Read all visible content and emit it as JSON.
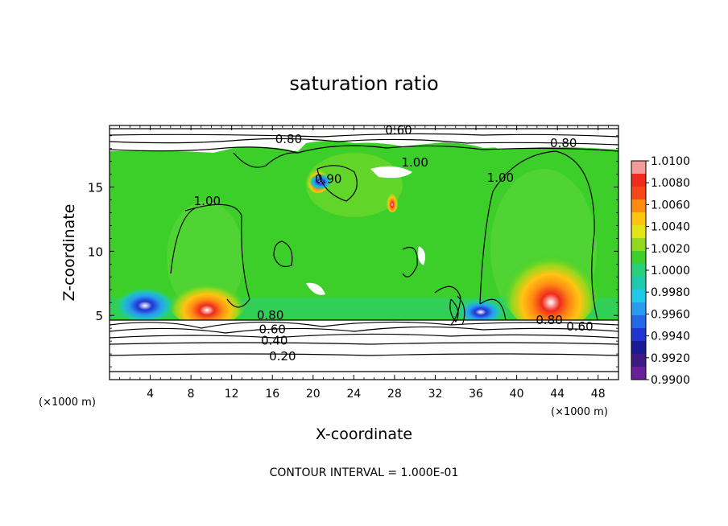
{
  "chart_data": {
    "type": "heatmap",
    "title": "saturation ratio",
    "xlabel": "X-coordinate",
    "ylabel": "Z-coordinate",
    "x_unit_left": "(×1000 m)",
    "x_unit_right": "(×1000 m)",
    "footer": "CONTOUR INTERVAL = 1.000E-01",
    "xlim": [
      0,
      50
    ],
    "ylim": [
      0,
      19.8
    ],
    "x_ticks": [
      4,
      8,
      12,
      16,
      20,
      24,
      28,
      32,
      36,
      40,
      44,
      48
    ],
    "y_ticks": [
      5,
      10,
      15
    ],
    "colorbar": {
      "levels": [
        "1.0100",
        "1.0080",
        "1.0060",
        "1.0040",
        "1.0020",
        "1.0000",
        "0.9980",
        "0.9960",
        "0.9940",
        "0.9920",
        "0.9900"
      ],
      "colors": [
        "#f49a9a",
        "#ee2a1c",
        "#f5481a",
        "#ff8a14",
        "#ffc412",
        "#e2e416",
        "#92d81e",
        "#3ccf2a",
        "#28d07c",
        "#1ec9ae",
        "#22c8e8",
        "#2a9cf0",
        "#2468e6",
        "#2034d2",
        "#1a1a96",
        "#3e1a84",
        "#68209a"
      ]
    },
    "contour_labels": [
      {
        "text": "0.60",
        "x": 28.4,
        "z": 19.3
      },
      {
        "text": "0.80",
        "x": 17.6,
        "z": 18.6
      },
      {
        "text": "0.80",
        "x": 44.6,
        "z": 18.3
      },
      {
        "text": "1.00",
        "x": 30.0,
        "z": 16.8
      },
      {
        "text": "0.90",
        "x": 21.5,
        "z": 15.5
      },
      {
        "text": "1.00",
        "x": 38.4,
        "z": 15.6
      },
      {
        "text": "1.00",
        "x": 9.6,
        "z": 13.8
      },
      {
        "text": "0.80",
        "x": 15.8,
        "z": 4.9
      },
      {
        "text": "0.60",
        "x": 16.0,
        "z": 3.8
      },
      {
        "text": "0.40",
        "x": 16.2,
        "z": 2.9
      },
      {
        "text": "0.20",
        "x": 17.0,
        "z": 1.7
      },
      {
        "text": "0.80",
        "x": 43.2,
        "z": 4.5
      },
      {
        "text": "0.60",
        "x": 46.2,
        "z": 4.0
      }
    ],
    "hotspots": [
      {
        "x": 9.7,
        "z": 5.3,
        "value": 1.008
      },
      {
        "x": 43.0,
        "z": 5.6,
        "value": 1.008
      },
      {
        "x": 20.6,
        "z": 16.0,
        "value": 1.006
      },
      {
        "x": 28.3,
        "z": 14.0,
        "value": 1.006
      }
    ],
    "coldspots": [
      {
        "x": 3.5,
        "z": 5.4,
        "value": 0.994
      },
      {
        "x": 36.6,
        "z": 5.1,
        "value": 0.994
      },
      {
        "x": 21.2,
        "z": 15.6,
        "value": 0.994
      }
    ],
    "cloud_base_z": 4.9,
    "cloud_top_z": 18.2
  }
}
